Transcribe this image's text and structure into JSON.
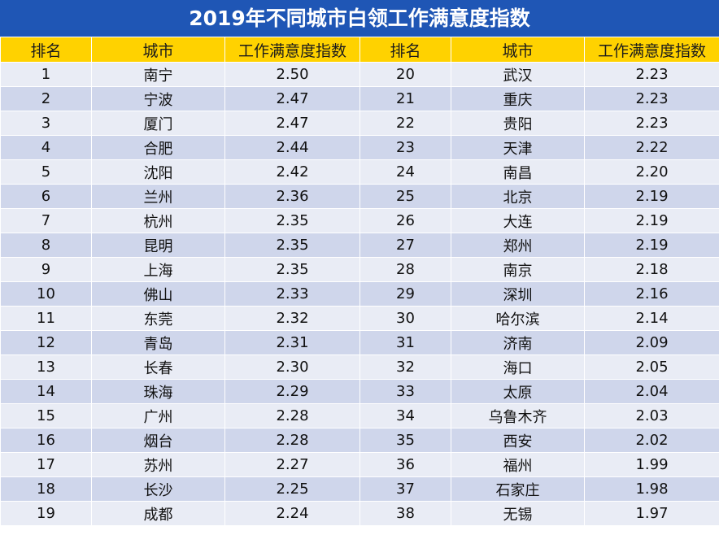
{
  "title": "2019年不同城市白领工作满意度指数",
  "headers": [
    "排名",
    "城市",
    "工作满意度指数",
    "排名",
    "城市",
    "工作满意度指数"
  ],
  "colors": {
    "title_bg": "#1f56b5",
    "header_bg": "#ffd200",
    "row_light": "#e9ecf5",
    "row_dark": "#cfd6eb"
  },
  "rows": [
    [
      {
        "rank": "1",
        "city": "南宁",
        "index": "2.50"
      },
      {
        "rank": "20",
        "city": "武汉",
        "index": "2.23"
      }
    ],
    [
      {
        "rank": "2",
        "city": "宁波",
        "index": "2.47"
      },
      {
        "rank": "21",
        "city": "重庆",
        "index": "2.23"
      }
    ],
    [
      {
        "rank": "3",
        "city": "厦门",
        "index": "2.47"
      },
      {
        "rank": "22",
        "city": "贵阳",
        "index": "2.23"
      }
    ],
    [
      {
        "rank": "4",
        "city": "合肥",
        "index": "2.44"
      },
      {
        "rank": "23",
        "city": "天津",
        "index": "2.22"
      }
    ],
    [
      {
        "rank": "5",
        "city": "沈阳",
        "index": "2.42"
      },
      {
        "rank": "24",
        "city": "南昌",
        "index": "2.20"
      }
    ],
    [
      {
        "rank": "6",
        "city": "兰州",
        "index": "2.36"
      },
      {
        "rank": "25",
        "city": "北京",
        "index": "2.19"
      }
    ],
    [
      {
        "rank": "7",
        "city": "杭州",
        "index": "2.35"
      },
      {
        "rank": "26",
        "city": "大连",
        "index": "2.19"
      }
    ],
    [
      {
        "rank": "8",
        "city": "昆明",
        "index": "2.35"
      },
      {
        "rank": "27",
        "city": "郑州",
        "index": "2.19"
      }
    ],
    [
      {
        "rank": "9",
        "city": "上海",
        "index": "2.35"
      },
      {
        "rank": "28",
        "city": "南京",
        "index": "2.18"
      }
    ],
    [
      {
        "rank": "10",
        "city": "佛山",
        "index": "2.33"
      },
      {
        "rank": "29",
        "city": "深圳",
        "index": "2.16"
      }
    ],
    [
      {
        "rank": "11",
        "city": "东莞",
        "index": "2.32"
      },
      {
        "rank": "30",
        "city": "哈尔滨",
        "index": "2.14"
      }
    ],
    [
      {
        "rank": "12",
        "city": "青岛",
        "index": "2.31"
      },
      {
        "rank": "31",
        "city": "济南",
        "index": "2.09"
      }
    ],
    [
      {
        "rank": "13",
        "city": "长春",
        "index": "2.30"
      },
      {
        "rank": "32",
        "city": "海口",
        "index": "2.05"
      }
    ],
    [
      {
        "rank": "14",
        "city": "珠海",
        "index": "2.29"
      },
      {
        "rank": "33",
        "city": "太原",
        "index": "2.04"
      }
    ],
    [
      {
        "rank": "15",
        "city": "广州",
        "index": "2.28"
      },
      {
        "rank": "34",
        "city": "乌鲁木齐",
        "index": "2.03"
      }
    ],
    [
      {
        "rank": "16",
        "city": "烟台",
        "index": "2.28"
      },
      {
        "rank": "35",
        "city": "西安",
        "index": "2.02"
      }
    ],
    [
      {
        "rank": "17",
        "city": "苏州",
        "index": "2.27"
      },
      {
        "rank": "36",
        "city": "福州",
        "index": "1.99"
      }
    ],
    [
      {
        "rank": "18",
        "city": "长沙",
        "index": "2.25"
      },
      {
        "rank": "37",
        "city": "石家庄",
        "index": "1.98"
      }
    ],
    [
      {
        "rank": "19",
        "city": "成都",
        "index": "2.24"
      },
      {
        "rank": "38",
        "city": "无锡",
        "index": "1.97"
      }
    ]
  ]
}
